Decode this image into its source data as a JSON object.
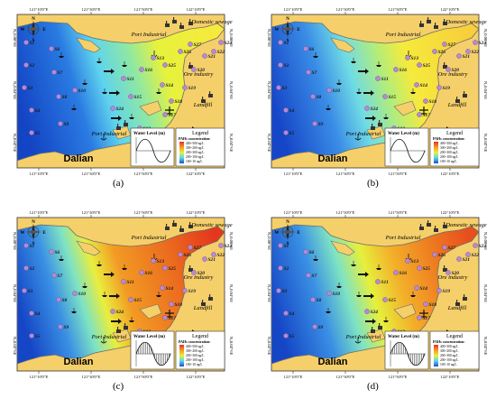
{
  "panels": [
    {
      "id": "a",
      "label": "(a)",
      "scenario": "low",
      "shaded_wave": false,
      "stations": [
        "S1",
        "S2",
        "S3",
        "S4",
        "S5",
        "S6",
        "S7",
        "S8",
        "S9",
        "S10",
        "S11",
        "S12",
        "S13",
        "S14",
        "S15",
        "S16",
        "S17",
        "S18",
        "S19",
        "S20",
        "S21",
        "S22",
        "S23",
        "S24",
        "S25",
        "S26",
        "S27"
      ]
    },
    {
      "id": "b",
      "label": "(b)",
      "scenario": "low-mid",
      "shaded_wave": false,
      "stations": [
        "S1",
        "S2",
        "S3",
        "S4",
        "S5",
        "S6",
        "S7",
        "S8",
        "S9",
        "S10",
        "S11",
        "S12",
        "S13",
        "S14",
        "S15",
        "S16",
        "S17",
        "S18",
        "S19",
        "S20",
        "S21",
        "S22",
        "S23",
        "S24",
        "S25",
        "S26",
        "S27"
      ]
    },
    {
      "id": "c",
      "label": "(c)",
      "scenario": "high",
      "shaded_wave": true,
      "stations": [
        "S1",
        "S2",
        "S3",
        "S4",
        "S5",
        "S6",
        "S7",
        "S8",
        "S9",
        "S10",
        "S11",
        "S12",
        "S13",
        "S14",
        "S15",
        "S16",
        "S17",
        "S18",
        "S19",
        "S20",
        "S21",
        "S22",
        "S23",
        "S24",
        "S25",
        "S26",
        "S27"
      ]
    },
    {
      "id": "d",
      "label": "(d)",
      "scenario": "mid-high",
      "shaded_wave": true,
      "stations": [
        "S1",
        "S2",
        "S3",
        "S4",
        "S5",
        "S6",
        "S7",
        "S8",
        "S9",
        "S10",
        "S11",
        "S12",
        "S13",
        "S14",
        "S15",
        "S16",
        "S17",
        "S18",
        "S19",
        "S20",
        "S21",
        "S22",
        "S23",
        "S24",
        "S25",
        "S26",
        "S27"
      ]
    }
  ],
  "map_labels": {
    "port_top": "Port Industrial",
    "port_bottom": "Port Industrial",
    "domestic": "Domestic sewage",
    "ore": "Ore industry",
    "landfill": "Landfill",
    "city": "Dalian"
  },
  "axis_labels": {
    "top": [
      "121°10'0\"E",
      "121°30'0\"E",
      "121°50'0\"E",
      "122°10'0\"E"
    ],
    "bottom": [
      "121°10'0\"E",
      "121°30'0\"E",
      "121°50'0\"E",
      "122°10'0\"E"
    ],
    "left": [
      "N„0.00°6E",
      "N„0.04°6E",
      "N„0.0Z°6E"
    ],
    "right": [
      "N„0.00°6E",
      "N„0.04°6E",
      "N„0.0Z°6E"
    ]
  },
  "compass": {
    "n": "N",
    "s": "S",
    "e": "E",
    "w": "W"
  },
  "water_level": {
    "label": "Water Level (m)"
  },
  "legend": {
    "title": "Legend",
    "subtitle": "PAHs concentration:",
    "ranges": [
      "400~500 ng/L",
      "300~200 ng/L",
      "200~300 ng/L",
      "200~100 ng/L",
      "100~10 ng/L"
    ]
  },
  "colors": {
    "land": "#f5cf6a",
    "coast": "#6b6b6b",
    "deep_blue": "#1744c8",
    "cyan": "#5fd3ee",
    "green": "#8ee8a3",
    "yellow": "#f6ea3c",
    "orange": "#f08a1e",
    "red": "#e2321e",
    "station": "#b68ad6"
  }
}
